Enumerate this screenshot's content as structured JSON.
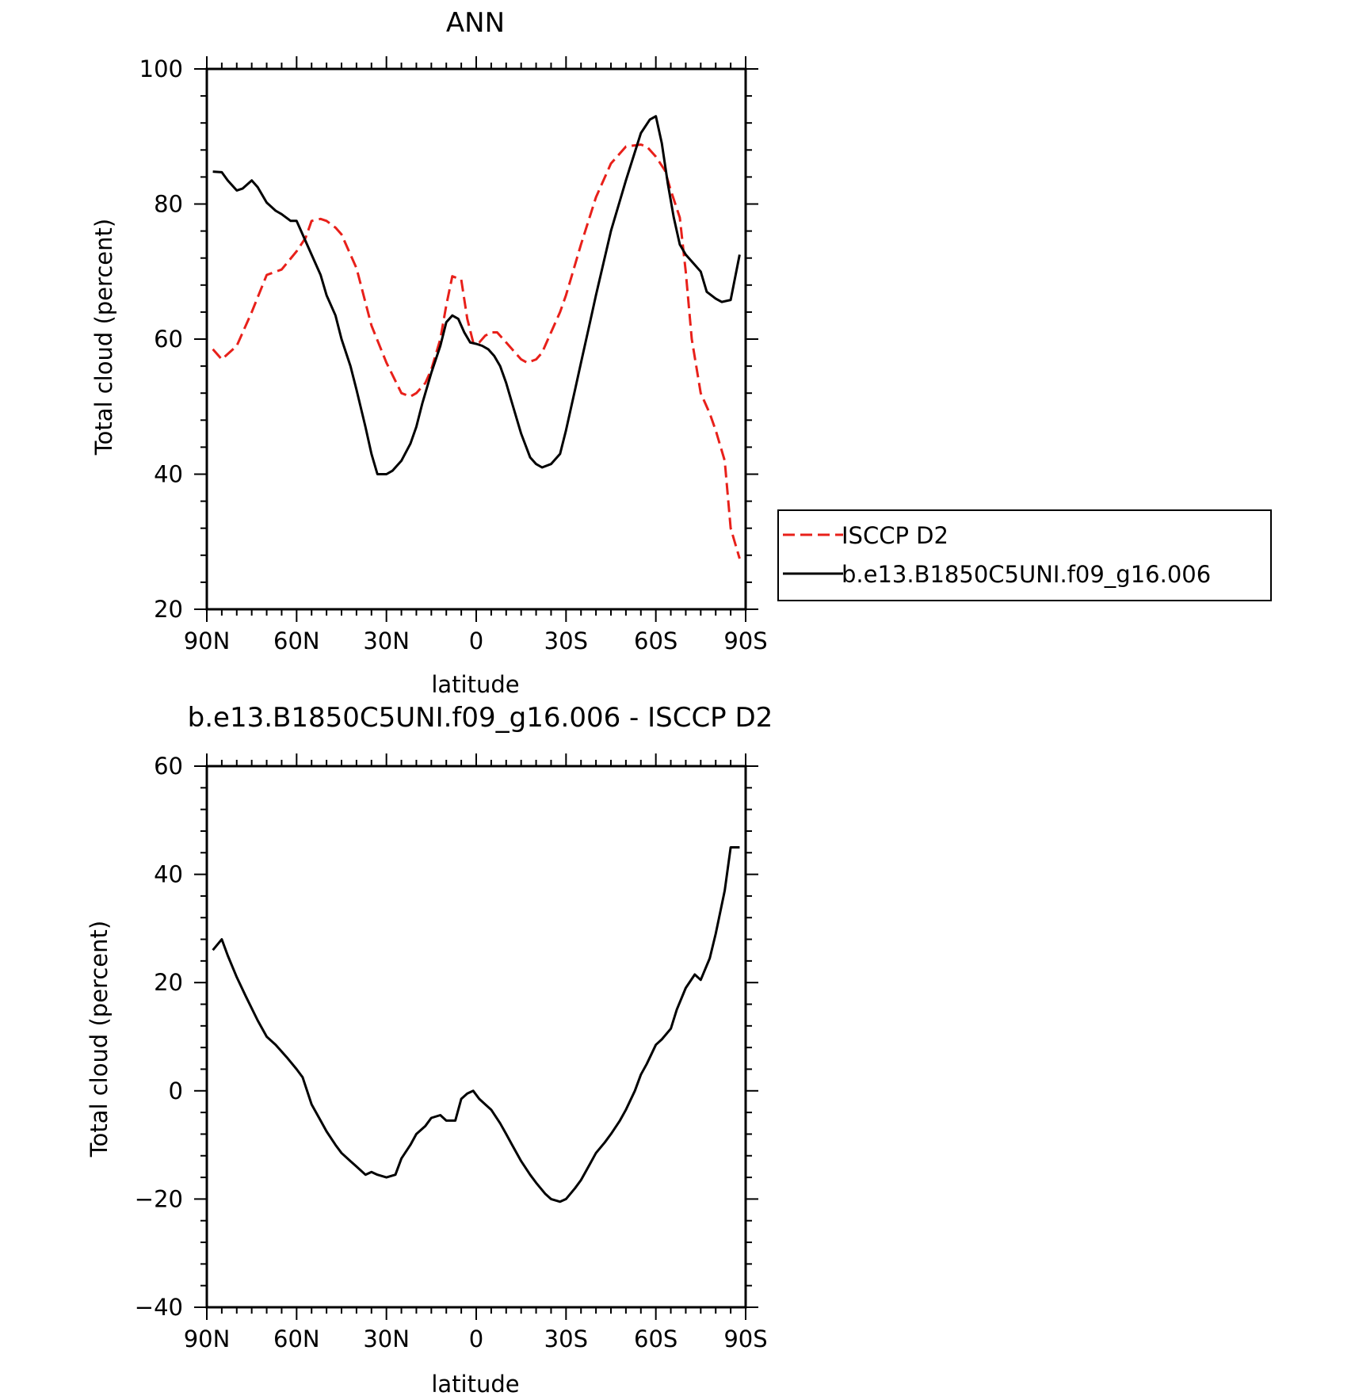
{
  "chart_data": [
    {
      "type": "line",
      "title": "ANN",
      "xlabel": "latitude",
      "ylabel": "Total cloud (percent)",
      "xlim": [
        90,
        -90
      ],
      "ylim": [
        20,
        100
      ],
      "yticks": [
        20,
        40,
        60,
        80,
        100
      ],
      "xticks": [
        90,
        60,
        30,
        0,
        -30,
        -60,
        -90
      ],
      "xticklabels": [
        "90N",
        "60N",
        "30N",
        "0",
        "30S",
        "60S",
        "90S"
      ],
      "grid": false,
      "legend": "outside right",
      "series": [
        {
          "name": "ISCCP D2",
          "color": "#e8201a",
          "style": "dashed",
          "x": [
            88,
            85,
            80,
            75,
            70,
            65,
            60,
            57,
            55,
            52,
            50,
            47,
            45,
            40,
            35,
            30,
            25,
            22,
            20,
            17,
            15,
            12,
            10,
            8,
            5,
            3,
            1,
            -1,
            -3,
            -5,
            -7,
            -10,
            -12,
            -15,
            -17,
            -20,
            -22,
            -25,
            -28,
            -30,
            -35,
            -40,
            -45,
            -50,
            -55,
            -57,
            -60,
            -63,
            -65,
            -68,
            -70,
            -72,
            -75,
            -78,
            -80,
            -83,
            -85,
            -88
          ],
          "values": [
            58.5,
            57,
            59,
            64,
            69.5,
            70.3,
            73,
            75,
            77.5,
            77.8,
            77.5,
            76.5,
            75.5,
            70.5,
            62,
            56.5,
            52,
            51.5,
            52,
            53.5,
            55.5,
            60,
            65,
            69.3,
            68.8,
            63,
            59.5,
            59.5,
            60.5,
            61,
            61,
            59.5,
            58.5,
            57,
            56.5,
            57,
            58,
            61,
            64,
            66.5,
            74,
            81,
            86,
            88.5,
            88.8,
            88.5,
            87,
            85,
            82,
            78,
            70,
            60,
            52,
            49,
            46.5,
            42,
            32,
            27.5
          ]
        },
        {
          "name": "b.e13.B1850C5UNI.f09_g16.006",
          "color": "#000000",
          "style": "solid",
          "x": [
            88,
            85,
            83,
            80,
            78,
            75,
            73,
            70,
            67,
            65,
            62,
            60,
            58,
            55,
            52,
            50,
            47,
            45,
            42,
            40,
            37,
            35,
            33,
            30,
            28,
            25,
            22,
            20,
            18,
            15,
            12,
            10,
            8,
            6,
            4,
            2,
            0,
            -2,
            -4,
            -6,
            -8,
            -10,
            -12,
            -15,
            -18,
            -20,
            -22,
            -25,
            -28,
            -30,
            -33,
            -35,
            -38,
            -40,
            -45,
            -50,
            -55,
            -58,
            -60,
            -62,
            -64,
            -66,
            -68,
            -70,
            -73,
            -75,
            -77,
            -80,
            -82,
            -85,
            -88
          ],
          "values": [
            84.8,
            84.7,
            83.5,
            82,
            82.3,
            83.5,
            82.5,
            80.2,
            79,
            78.5,
            77.5,
            77.5,
            75.5,
            72.5,
            69.5,
            66.5,
            63.5,
            60,
            56,
            52.5,
            47,
            43,
            40,
            40,
            40.5,
            42,
            44.5,
            47,
            50.5,
            55,
            59,
            62.5,
            63.5,
            63,
            61,
            59.5,
            59.3,
            59,
            58.5,
            57.5,
            56,
            53.5,
            50.5,
            46,
            42.5,
            41.5,
            41,
            41.5,
            43,
            46.5,
            52.5,
            56.5,
            62.5,
            66.5,
            76,
            83.5,
            90.5,
            92.5,
            93,
            89,
            83,
            78,
            74,
            72.5,
            71,
            70,
            67,
            66,
            65.5,
            65.8,
            72.5
          ]
        }
      ]
    },
    {
      "type": "line",
      "title": "b.e13.B1850C5UNI.f09_g16.006 - ISCCP D2",
      "xlabel": "latitude",
      "ylabel": "Total cloud (percent)",
      "xlim": [
        90,
        -90
      ],
      "ylim": [
        -40,
        60
      ],
      "yticks": [
        -40,
        -20,
        0,
        20,
        40,
        60
      ],
      "ytick_labels": [
        "−40",
        "−20",
        "0",
        "20",
        "40",
        "60"
      ],
      "xticks": [
        90,
        60,
        30,
        0,
        -30,
        -60,
        -90
      ],
      "xticklabels": [
        "90N",
        "60N",
        "30N",
        "0",
        "30S",
        "60S",
        "90S"
      ],
      "grid": false,
      "series": [
        {
          "color": "#000000",
          "style": "solid",
          "x": [
            88,
            85,
            83,
            80,
            77,
            73,
            70,
            67,
            63,
            60,
            58,
            55,
            52,
            50,
            47,
            45,
            42,
            40,
            37,
            35,
            33,
            30,
            27,
            25,
            22,
            20,
            17,
            15,
            12,
            10,
            7,
            5,
            3,
            1,
            -1,
            -3,
            -5,
            -8,
            -10,
            -12,
            -15,
            -18,
            -20,
            -23,
            -25,
            -28,
            -30,
            -33,
            -35,
            -38,
            -40,
            -43,
            -45,
            -48,
            -50,
            -53,
            -55,
            -57,
            -60,
            -62,
            -65,
            -67,
            -70,
            -73,
            -75,
            -78,
            -80,
            -83,
            -85,
            -88
          ],
          "values": [
            26,
            28,
            25,
            21,
            17.5,
            13,
            10,
            8.5,
            6,
            4,
            2.5,
            -2.5,
            -5.5,
            -7.5,
            -10,
            -11.5,
            -13,
            -14,
            -15.5,
            -15,
            -15.5,
            -16,
            -15.5,
            -12.5,
            -10,
            -8,
            -6.5,
            -5,
            -4.5,
            -5.5,
            -5.5,
            -1.5,
            -0.5,
            0,
            -1.5,
            -2.5,
            -3.5,
            -6,
            -8,
            -10,
            -13,
            -15.5,
            -17,
            -19,
            -20,
            -20.5,
            -20,
            -18,
            -16.5,
            -13.5,
            -11.5,
            -9.5,
            -8,
            -5.5,
            -3.5,
            0,
            3,
            5,
            8.5,
            9.5,
            11.5,
            15,
            19,
            21.5,
            20.5,
            24.5,
            29,
            37,
            45,
            45
          ]
        }
      ]
    }
  ]
}
